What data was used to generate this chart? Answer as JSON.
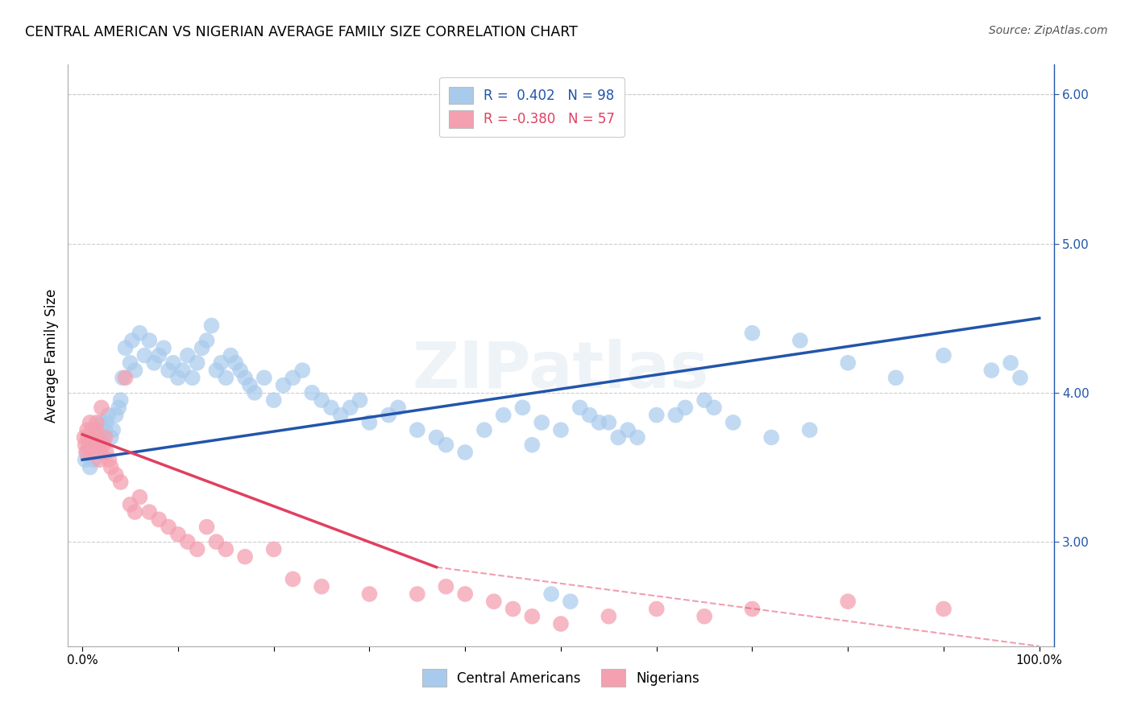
{
  "title": "CENTRAL AMERICAN VS NIGERIAN AVERAGE FAMILY SIZE CORRELATION CHART",
  "source": "Source: ZipAtlas.com",
  "ylabel": "Average Family Size",
  "right_yticks": [
    3.0,
    4.0,
    5.0,
    6.0
  ],
  "right_ytick_labels": [
    "3.00",
    "4.00",
    "5.00",
    "6.00"
  ],
  "legend_blue_r": "R =  0.402",
  "legend_blue_n": "N = 98",
  "legend_pink_r": "R = -0.380",
  "legend_pink_n": "N = 57",
  "legend_blue_label": "Central Americans",
  "legend_pink_label": "Nigerians",
  "blue_color": "#A8CAED",
  "pink_color": "#F4A0B0",
  "blue_line_color": "#2255AA",
  "pink_line_color": "#E04060",
  "watermark": "ZIPatlas",
  "background_color": "#FFFFFF",
  "blue_scatter_x": [
    0.3,
    0.5,
    0.8,
    1.0,
    1.2,
    1.3,
    1.5,
    1.6,
    1.8,
    2.0,
    2.2,
    2.4,
    2.5,
    2.7,
    3.0,
    3.2,
    3.5,
    3.8,
    4.0,
    4.2,
    4.5,
    5.0,
    5.2,
    5.5,
    6.0,
    6.5,
    7.0,
    7.5,
    8.0,
    8.5,
    9.0,
    9.5,
    10.0,
    10.5,
    11.0,
    11.5,
    12.0,
    12.5,
    13.0,
    13.5,
    14.0,
    14.5,
    15.0,
    15.5,
    16.0,
    16.5,
    17.0,
    17.5,
    18.0,
    19.0,
    20.0,
    21.0,
    22.0,
    23.0,
    24.0,
    25.0,
    26.0,
    27.0,
    28.0,
    29.0,
    30.0,
    32.0,
    33.0,
    35.0,
    37.0,
    38.0,
    40.0,
    42.0,
    44.0,
    46.0,
    48.0,
    50.0,
    52.0,
    53.0,
    55.0,
    57.0,
    58.0,
    60.0,
    63.0,
    65.0,
    70.0,
    75.0,
    80.0,
    85.0,
    90.0,
    95.0,
    97.0,
    98.0,
    47.0,
    49.0,
    51.0,
    54.0,
    56.0,
    62.0,
    66.0,
    68.0,
    72.0,
    76.0
  ],
  "blue_scatter_y": [
    3.55,
    3.6,
    3.5,
    3.65,
    3.55,
    3.7,
    3.75,
    3.65,
    3.6,
    3.8,
    3.7,
    3.75,
    3.8,
    3.85,
    3.7,
    3.75,
    3.85,
    3.9,
    3.95,
    4.1,
    4.3,
    4.2,
    4.35,
    4.15,
    4.4,
    4.25,
    4.35,
    4.2,
    4.25,
    4.3,
    4.15,
    4.2,
    4.1,
    4.15,
    4.25,
    4.1,
    4.2,
    4.3,
    4.35,
    4.45,
    4.15,
    4.2,
    4.1,
    4.25,
    4.2,
    4.15,
    4.1,
    4.05,
    4.0,
    4.1,
    3.95,
    4.05,
    4.1,
    4.15,
    4.0,
    3.95,
    3.9,
    3.85,
    3.9,
    3.95,
    3.8,
    3.85,
    3.9,
    3.75,
    3.7,
    3.65,
    3.6,
    3.75,
    3.85,
    3.9,
    3.8,
    3.75,
    3.9,
    3.85,
    3.8,
    3.75,
    3.7,
    3.85,
    3.9,
    3.95,
    4.4,
    4.35,
    4.2,
    4.1,
    4.25,
    4.15,
    4.2,
    4.1,
    3.65,
    2.65,
    2.6,
    3.8,
    3.7,
    3.85,
    3.9,
    3.8,
    3.7,
    3.75
  ],
  "pink_scatter_x": [
    0.2,
    0.3,
    0.4,
    0.5,
    0.6,
    0.7,
    0.8,
    0.9,
    1.0,
    1.1,
    1.2,
    1.3,
    1.4,
    1.5,
    1.6,
    1.7,
    1.8,
    1.9,
    2.0,
    2.2,
    2.4,
    2.5,
    2.8,
    3.0,
    3.5,
    4.0,
    4.5,
    5.0,
    5.5,
    6.0,
    7.0,
    8.0,
    9.0,
    10.0,
    11.0,
    12.0,
    13.0,
    14.0,
    15.0,
    17.0,
    20.0,
    22.0,
    25.0,
    30.0,
    35.0,
    38.0,
    40.0,
    43.0,
    45.0,
    47.0,
    50.0,
    55.0,
    60.0,
    65.0,
    70.0,
    80.0,
    90.0
  ],
  "pink_scatter_y": [
    3.7,
    3.65,
    3.6,
    3.75,
    3.7,
    3.65,
    3.8,
    3.6,
    3.75,
    3.7,
    3.65,
    3.6,
    3.75,
    3.8,
    3.7,
    3.65,
    3.55,
    3.6,
    3.9,
    3.65,
    3.7,
    3.6,
    3.55,
    3.5,
    3.45,
    3.4,
    4.1,
    3.25,
    3.2,
    3.3,
    3.2,
    3.15,
    3.1,
    3.05,
    3.0,
    2.95,
    3.1,
    3.0,
    2.95,
    2.9,
    2.95,
    2.75,
    2.7,
    2.65,
    2.65,
    2.7,
    2.65,
    2.6,
    2.55,
    2.5,
    2.45,
    2.5,
    2.55,
    2.5,
    2.55,
    2.6,
    2.55
  ],
  "blue_line_start_y": 3.55,
  "blue_line_end_y": 4.5,
  "pink_line_solid_end_x": 37.0,
  "pink_line_start_y": 3.72,
  "pink_line_solid_end_y": 2.83,
  "pink_line_end_y": 2.3,
  "ylim_min": 2.3,
  "ylim_max": 6.2,
  "xlim_min": -1.5,
  "xlim_max": 101.5
}
